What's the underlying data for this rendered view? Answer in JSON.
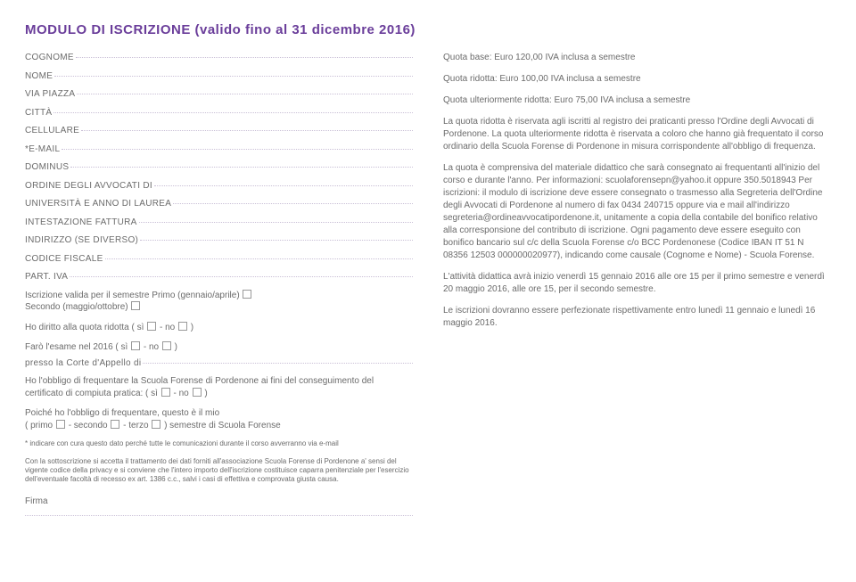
{
  "title": "MODULO DI ISCRIZIONE (valido fino al 31 dicembre 2016)",
  "left": {
    "fields": [
      "COGNOME",
      "NOME",
      "VIA PIAZZA",
      "CITTÀ",
      "CELLULARE",
      "*E-MAIL",
      "DOMINUS",
      "ORDINE DEGLI AVVOCATI DI",
      "UNIVERSITÀ E ANNO DI LAUREA",
      "INTESTAZIONE FATTURA",
      "INDIRIZZO (SE DIVERSO)",
      "CODICE FISCALE",
      "PART. IVA"
    ],
    "line1a": "Iscrizione valida per il semestre Primo (gennaio/aprile)",
    "line1b": "Secondo (maggio/ottobre)",
    "line2a": "Ho diritto alla quota ridotta ( sì",
    "line2b": " - no",
    "line2c": " )",
    "line3a": "Farò l'esame nel 2016 ( sì",
    "line3b": " - no",
    "line3c": " )",
    "line4": "presso la Corte d'Appello di ",
    "line5a": "Ho l'obbligo di frequentare la Scuola Forense di Pordenone ai fini del conseguimento del certificato di compiuta pratica: ( sì",
    "line5b": " - no",
    "line5c": " )",
    "line6": "Poiché ho l'obbligo di frequentare, questo è il mio",
    "line7a": "( primo",
    "line7b": " - secondo",
    "line7c": " - terzo",
    "line7d": " ) semestre di Scuola Forense",
    "note": "* indicare con cura questo dato perché tutte le comunicazioni durante il corso avverranno via e-mail",
    "consent": "Con la sottoscrizione si accetta il trattamento dei dati forniti all'associazione Scuola Forense di Pordenone a' sensi del vigente codice della privacy e si conviene che l'intero importo dell'iscrizione costituisce caparra penitenziale per l'esercizio dell'eventuale facoltà di recesso ex art. 1386 c.c., salvi i casi di effettiva e comprovata giusta causa.",
    "firma": "Firma"
  },
  "right": {
    "p1": "Quota base: Euro 120,00 IVA inclusa a semestre",
    "p2": "Quota ridotta: Euro 100,00 IVA inclusa a semestre",
    "p3": "Quota ulteriormente ridotta: Euro 75,00 IVA inclusa a semestre",
    "p4": "La quota ridotta è riservata agli iscritti al registro dei praticanti presso l'Ordine degli Avvocati di Pordenone. La quota ulteriormente ridotta è riservata a coloro che hanno già frequentato il corso ordinario della Scuola Forense di Pordenone in misura corrispondente all'obbligo di frequenza.",
    "p5": "La quota è comprensiva del materiale didattico che sarà consegnato ai frequentanti all'inizio del corso e durante l'anno. Per informazioni: scuolaforensepn@yahoo.it oppure 350.5018943 Per iscrizioni: il modulo di iscrizione deve essere consegnato o trasmesso alla Segreteria dell'Ordine degli Avvocati di Pordenone al numero di fax 0434 240715 oppure via e mail all'indirizzo segreteria@ordineavvocatipordenone.it, unitamente a copia della contabile del bonifico relativo alla corresponsione del contributo di iscrizione. Ogni pagamento deve essere eseguito con bonifico bancario sul c/c della Scuola Forense c/o BCC Pordenonese (Codice IBAN IT 51 N 08356 12503 000000020977), indicando come causale (Cognome e Nome) - Scuola Forense.",
    "p6": "L'attività didattica avrà inizio venerdì 15 gennaio 2016 alle ore 15 per il primo semestre e venerdì 20 maggio 2016, alle ore 15, per il secondo semestre.",
    "p7": "Le iscrizioni dovranno essere perfezionate rispettivamente entro lunedì 11 gennaio e lunedì 16 maggio 2016."
  }
}
